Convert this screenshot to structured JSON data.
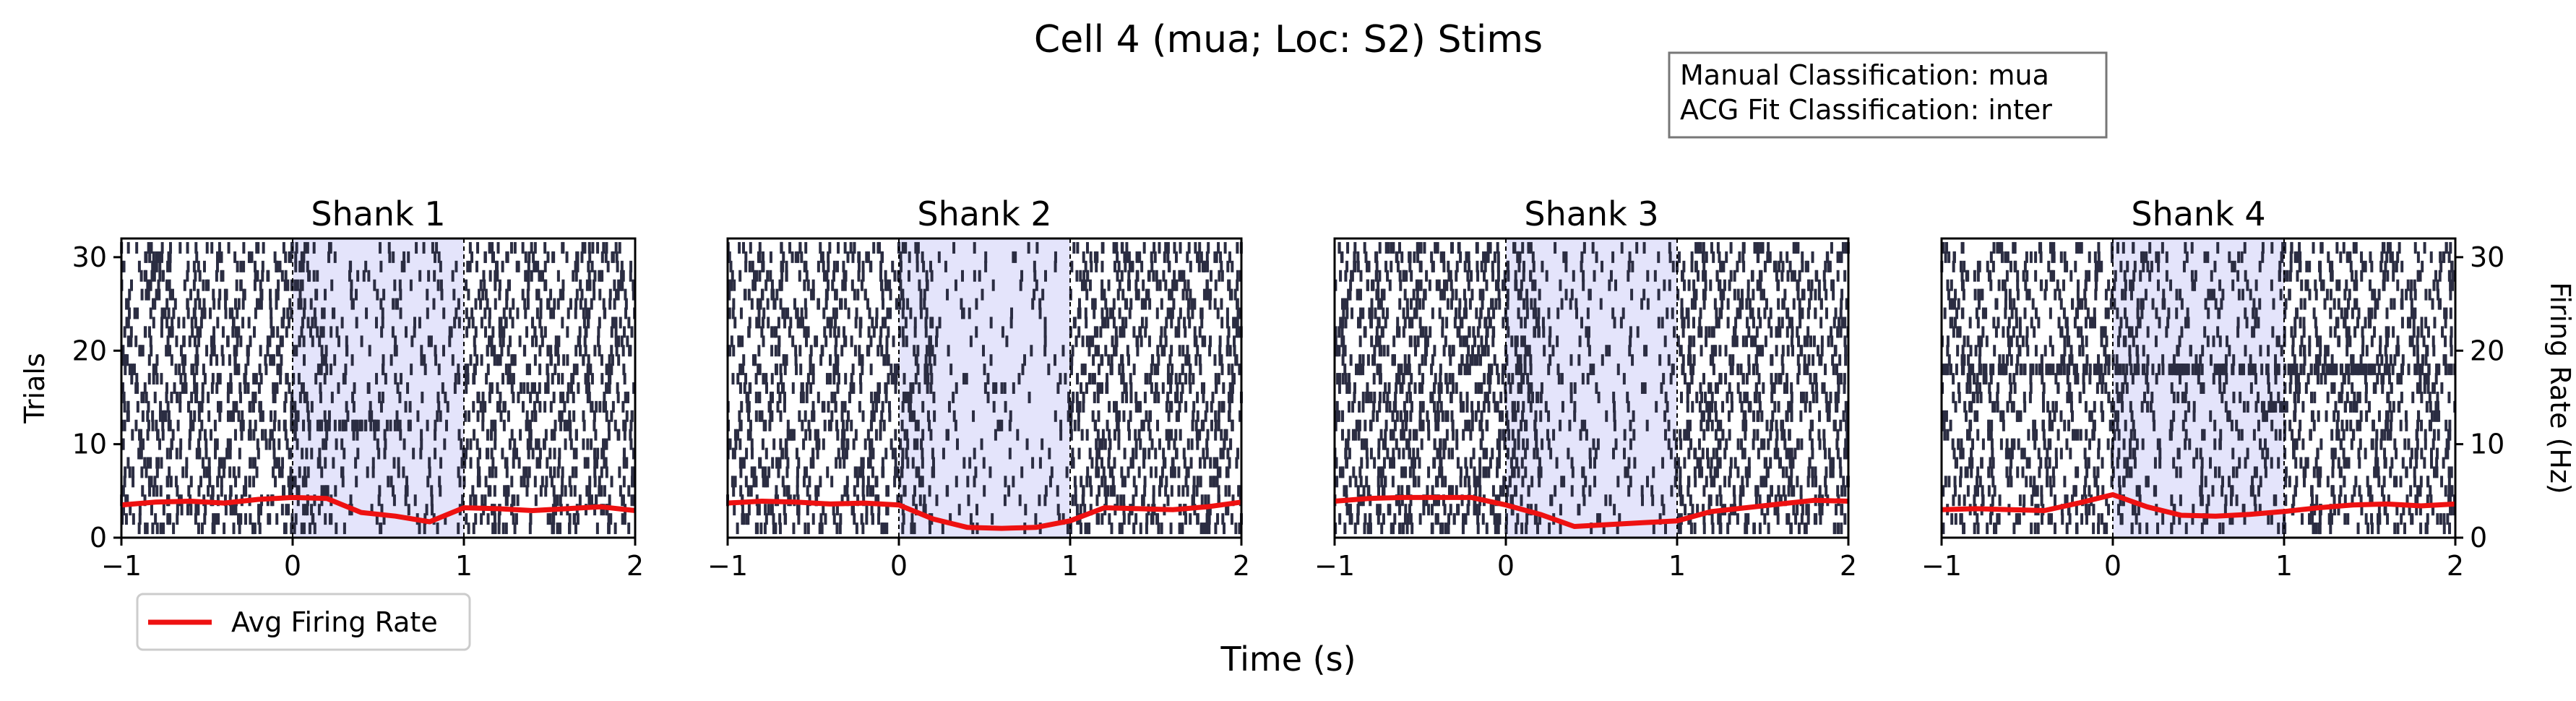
{
  "title": "Cell 4 (mua; Loc: S2) Stims",
  "info_box": {
    "line1": "Manual Classification: mua",
    "line2": "ACG Fit Classification: inter"
  },
  "legend": {
    "label": "Avg Firing Rate",
    "placement": "lower-left"
  },
  "xlabel": "Time (s)",
  "ylabel_left": "Trials",
  "ylabel_right": "Firing Rate (Hz)",
  "colors": {
    "spike": "#2b2d42",
    "rate": "#ee1111",
    "stim_shade": "#e4e4fb",
    "marker": "#000000"
  },
  "chart_data": {
    "type": "raster",
    "xlim": [
      -1,
      2
    ],
    "ylim_trials": [
      0,
      32
    ],
    "ylim_rate": [
      0,
      32
    ],
    "xticks": [
      -1,
      0,
      1,
      2
    ],
    "xtick_labels": [
      "−1",
      "0",
      "1",
      "2"
    ],
    "yticks": [
      0,
      10,
      20,
      30
    ],
    "ytick_labels": [
      "0",
      "10",
      "20",
      "30"
    ],
    "n_trials": 31,
    "stim_window": [
      0,
      1
    ],
    "event_markers": [
      0,
      1
    ],
    "rate_x": [
      -1.0,
      -0.8,
      -0.6,
      -0.4,
      -0.2,
      0.0,
      0.2,
      0.4,
      0.6,
      0.8,
      1.0,
      1.2,
      1.4,
      1.6,
      1.8,
      2.0
    ],
    "panels": [
      {
        "title": "Shank 1",
        "spike_rate": [
          22,
          22,
          22,
          22,
          22,
          22,
          10,
          10,
          10,
          10,
          22,
          22,
          22,
          22,
          22
        ],
        "dense_trials": [
          {
            "trial": 12,
            "start": 0.0,
            "end": 0.75
          }
        ],
        "rate_y": [
          3.5,
          3.8,
          3.9,
          3.7,
          4.1,
          4.3,
          4.2,
          2.7,
          2.3,
          1.7,
          3.2,
          3.1,
          2.9,
          3.1,
          3.3,
          2.9
        ]
      },
      {
        "title": "Shank 2",
        "spike_rate": [
          22,
          22,
          22,
          22,
          22,
          22,
          6,
          6,
          6,
          6,
          24,
          24,
          24,
          24,
          24
        ],
        "dense_trials": [
          {
            "trial": 16,
            "start": 0.55,
            "end": 0.65
          }
        ],
        "rate_y": [
          3.7,
          3.9,
          3.8,
          3.6,
          3.7,
          3.5,
          2.0,
          1.1,
          1.0,
          1.1,
          1.8,
          3.2,
          3.1,
          3.0,
          3.3,
          3.8
        ]
      },
      {
        "title": "Shank 3",
        "spike_rate": [
          26,
          26,
          26,
          26,
          26,
          26,
          9,
          9,
          9,
          9,
          24,
          24,
          24,
          24,
          24
        ],
        "dense_trials": [],
        "rate_y": [
          3.9,
          4.2,
          4.3,
          4.3,
          4.3,
          3.5,
          2.5,
          1.2,
          1.4,
          1.6,
          1.8,
          2.8,
          3.2,
          3.6,
          4.0,
          3.9
        ]
      },
      {
        "title": "Shank 4",
        "spike_rate": [
          20,
          20,
          20,
          20,
          20,
          20,
          12,
          12,
          12,
          12,
          22,
          22,
          22,
          22,
          22
        ],
        "dense_trials": [
          {
            "trial": 18,
            "start": -1.0,
            "end": 2.0
          },
          {
            "trial": 14,
            "start": 0.8,
            "end": 1.05
          }
        ],
        "rate_y": [
          3.0,
          3.1,
          3.0,
          2.9,
          3.7,
          4.6,
          3.3,
          2.4,
          2.3,
          2.5,
          2.8,
          3.2,
          3.5,
          3.6,
          3.4,
          3.6
        ]
      }
    ]
  }
}
